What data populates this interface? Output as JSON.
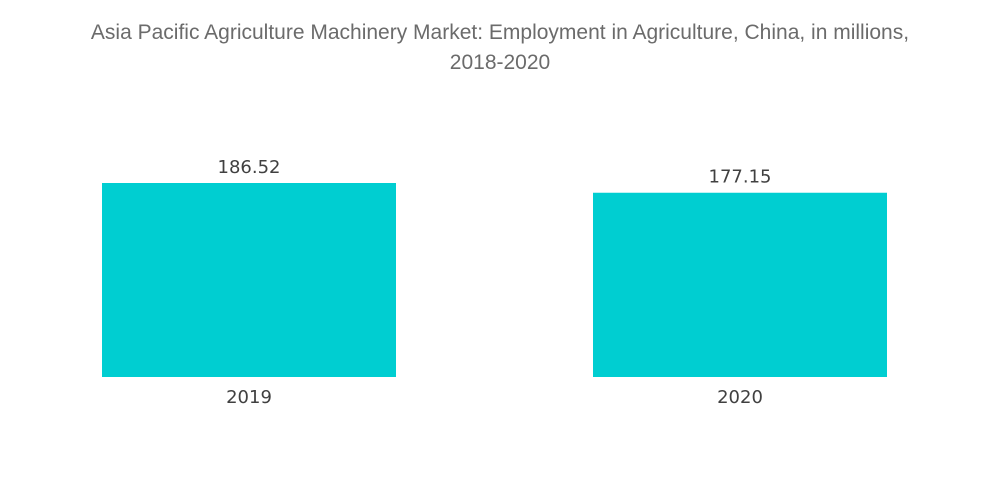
{
  "chart_data": {
    "type": "bar",
    "title_lines": [
      "Asia Pacific Agriculture Machinery Market: Employment in Agriculture, China, in millions,",
      "2018-2020"
    ],
    "categories": [
      "2019",
      "2020"
    ],
    "values": [
      186.52,
      177.15
    ],
    "value_labels": [
      "186.52",
      "177.15"
    ],
    "bar_color": "#00CED1",
    "ylim": [
      0,
      186.52
    ],
    "grid": false,
    "legend": "none"
  }
}
